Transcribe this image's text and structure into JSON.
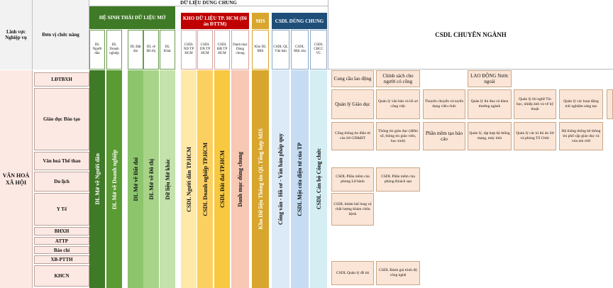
{
  "left": {
    "linh_vuc_header": "Lĩnh vực Nghiệp vụ",
    "don_vi_header": "Đơn vị chức năng",
    "domain_label": "VĂN HOÁ XÃ HỘI",
    "units": [
      "LĐTBXH",
      "Giáo dục Đào tạo",
      "Văn hoá Thể thao",
      "Du lịch",
      "Y Tế",
      "BHXH",
      "ATTP",
      "Báo chí",
      "XB-PTTH",
      "KHCN"
    ]
  },
  "top": {
    "shared_title": "DỮ LIỆU DÙNG CHUNG",
    "he_sinh_thai": "HỆ SINH THÁI DỮ LIỆU MỞ",
    "kho_du_lieu": "KHO DỮ LIỆU TP. HCM (Đề án ĐTTM)",
    "mis": "MIS",
    "csdl_dung_chung": "CSDL DÙNG CHUNG",
    "csdl_chuyen_nganh": "CSDL CHUYÊN NGÀNH"
  },
  "columns": [
    {
      "short": "DL Người dân",
      "long": "DL Mở về Người dân",
      "color": "#3f7a26"
    },
    {
      "short": "DL Doanh nghiệp",
      "long": "DL Mở về Doanh nghiệp",
      "color": "#5a9b33"
    },
    {
      "short": "DL Đất đai",
      "long": "DL Mở về Đất đai",
      "color": "#8cc56c"
    },
    {
      "short": "DL về Đô thị",
      "long": "DL Mở về Đô thị",
      "color": "#a8d48a"
    },
    {
      "short": "DL Khác",
      "long": "Dữ liệu Mở khác",
      "color": "#c3e2ac"
    },
    {
      "short": "CSDL ND TP HCM",
      "long": "CSDL Người dân TP.HCM",
      "color": "#ffe9a8"
    },
    {
      "short": "CSDL DN TP HCM",
      "long": "CSDL Doanh nghiệp TP.HCM",
      "color": "#fcd060"
    },
    {
      "short": "CSDL ĐĐ TP HCM",
      "long": "CSDL Đất đai TP.HCM",
      "color": "#f8c840"
    },
    {
      "short": "Danh mục Dùng chung",
      "long": "Danh mục dùng chung",
      "color": "#f7c8b4"
    },
    {
      "short": "Kho DL MIS",
      "long": "Kho Dữ liệu Thông tin QL Tổng hợp MIS",
      "color": "#d8a62c"
    },
    {
      "short": "CSDL QL Văn bản",
      "long": "Công văn - Hồ sơ - Văn bản pháp quy",
      "color": "#dce9f6"
    },
    {
      "short": "CSDL Một cửa",
      "long": "CSDL Một cửa điện tử của TP",
      "color": "#c6dcf2"
    },
    {
      "short": "CSDL CBCC VC",
      "long": "CSDL Cán bộ Công chức",
      "color": "#d4eef4"
    }
  ],
  "boxes": [
    "Cung cầu lao động",
    "Chính sách cho người có công",
    "LAO ĐỘNG Nước ngoài",
    "Quản lý Giáo dục",
    "Quản lý văn bản và hồ sơ công việc",
    "Thuyên chuyển và tuyển dụng viên chức",
    "Quản lý thi đua và khen thưởng ngành",
    "Quản lý thi nghề Tin học, nhiếp ảnh và vẽ kỹ thuật",
    "Quản lý các hoạt động trải nghiệm sáng tạo",
    "Cổng thông tin điện tử của Sở GD&ĐT",
    "Thông tin giáo dục (điểm số, thông tin giáo viên, học sinh)",
    "Phần mềm tạo báo cáo",
    "Quản lý, tập hợp hệ thống mạng, máy tính",
    "Quản lý các kì thi do Sở và phòng Tổ Chức",
    "Hệ thống thống kê thông tin phổ cập giáo dục và xóa mù chữ",
    "CSDL Phần mềm của phòng Lữ hành",
    "CSDL Phần mềm của phòng Khách sạn",
    "CSDL khám hải long và chất lượng khám chữa bệnh",
    "CSDL Quản lý đề tài",
    "CSDL Đánh giá trình độ công nghệ"
  ]
}
